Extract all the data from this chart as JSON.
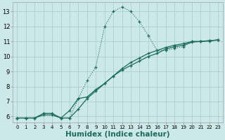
{
  "xlabel": "Humidex (Indice chaleur)",
  "bg_color": "#cce8e8",
  "grid_color": "#b0d4d4",
  "line_color": "#1a6b5a",
  "xlim": [
    -0.5,
    23.5
  ],
  "ylim": [
    5.6,
    13.6
  ],
  "xticks": [
    0,
    1,
    2,
    3,
    4,
    5,
    6,
    7,
    8,
    9,
    10,
    11,
    12,
    13,
    14,
    15,
    16,
    17,
    18,
    19,
    20,
    21,
    22,
    23
  ],
  "yticks": [
    6,
    7,
    8,
    9,
    10,
    11,
    12,
    13
  ],
  "line1_x": [
    0,
    1,
    2,
    3,
    4,
    5,
    6,
    7,
    8,
    9,
    10,
    11,
    12,
    13,
    14,
    15,
    16,
    17,
    18,
    19,
    20,
    21,
    22,
    23
  ],
  "line1_y": [
    5.9,
    5.9,
    5.9,
    6.2,
    6.2,
    5.9,
    5.9,
    7.2,
    8.4,
    9.3,
    12.0,
    13.0,
    13.3,
    13.0,
    12.3,
    11.4,
    10.4,
    10.4,
    10.55,
    10.65,
    11.0,
    11.0,
    11.0,
    11.1
  ],
  "line2_x": [
    0,
    1,
    2,
    3,
    4,
    5,
    6,
    7,
    8,
    9,
    10,
    11,
    12,
    13,
    14,
    15,
    16,
    17,
    18,
    19,
    20,
    21,
    22,
    23
  ],
  "line2_y": [
    5.9,
    5.9,
    5.9,
    6.2,
    6.2,
    5.9,
    6.4,
    7.2,
    7.3,
    7.8,
    8.2,
    8.7,
    9.1,
    9.4,
    9.7,
    10.0,
    10.2,
    10.5,
    10.65,
    10.75,
    10.95,
    11.0,
    11.05,
    11.1
  ],
  "line3_x": [
    0,
    1,
    2,
    3,
    4,
    5,
    6,
    7,
    8,
    9,
    10,
    11,
    12,
    13,
    14,
    15,
    16,
    17,
    18,
    19,
    20,
    21,
    22,
    23
  ],
  "line3_y": [
    5.9,
    5.9,
    5.9,
    6.1,
    6.1,
    5.9,
    5.9,
    6.5,
    7.2,
    7.7,
    8.2,
    8.7,
    9.2,
    9.6,
    9.9,
    10.2,
    10.4,
    10.6,
    10.75,
    10.85,
    11.0,
    11.0,
    11.05,
    11.1
  ],
  "tick_fontsize": 6,
  "label_fontsize": 7.5
}
